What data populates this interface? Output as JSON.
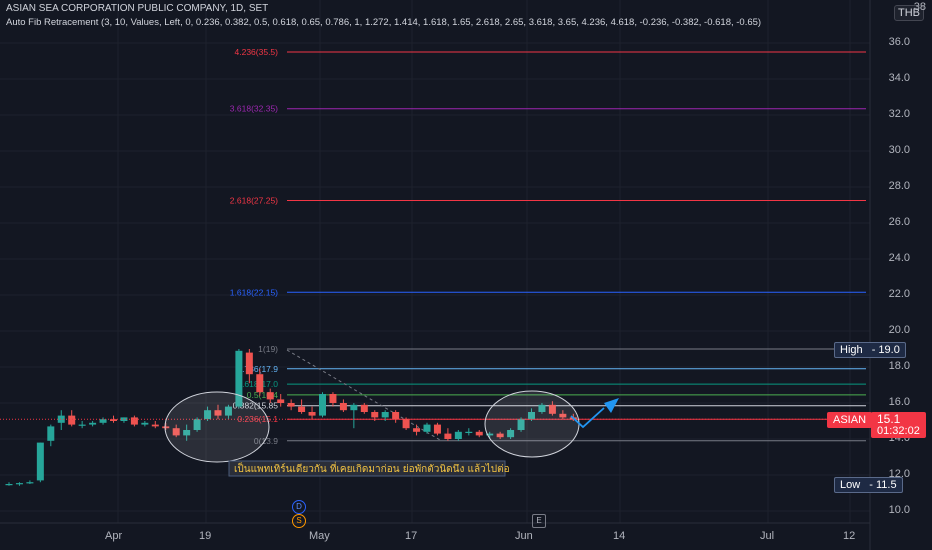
{
  "header": {
    "title": "ASIAN SEA CORPORATION PUBLIC COMPANY, 1D, SET",
    "indicator": "Auto Fib Retracement (3, 10, Values, Left, 0, 0.236, 0.382, 0.5, 0.618, 0.65, 0.786, 1, 1.272, 1.414, 1.618, 1.65, 2.618, 2.65, 3.618, 3.65, 4.236, 4.618, -0.236, -0.382, -0.618, -0.65)",
    "currency": "THB"
  },
  "price_axis": {
    "ticks": [
      "36.0",
      "34.0",
      "32.0",
      "30.0",
      "28.0",
      "26.0",
      "24.0",
      "22.0",
      "20.0",
      "18.0",
      "16.0",
      "14.0",
      "12.0",
      "10.0"
    ],
    "top_partial": "38"
  },
  "time_axis": {
    "ticks": [
      "Apr",
      "19",
      "May",
      "17",
      "Jun",
      "14",
      "Jul",
      "12"
    ]
  },
  "fib_levels": [
    {
      "label": "4.236(35.5)",
      "price": 35.5,
      "color": "#f23645"
    },
    {
      "label": "3.618(32.35)",
      "price": 32.35,
      "color": "#9c27b0"
    },
    {
      "label": "2.618(27.25)",
      "price": 27.25,
      "color": "#f23645"
    },
    {
      "label": "1.618(22.15)",
      "price": 22.15,
      "color": "#2962ff"
    },
    {
      "label": "1(19)",
      "price": 19,
      "color": "#787b86"
    },
    {
      "label": "0.786(17.9",
      "price": 17.9,
      "color": "#64b5f6"
    },
    {
      "label": "0.618(17.0",
      "price": 17.05,
      "color": "#089981"
    },
    {
      "label": "0.5(16.4",
      "price": 16.45,
      "color": "#4caf50"
    },
    {
      "label": "0.382(15.85",
      "price": 15.85,
      "color": "#d1d4dc"
    },
    {
      "label": "0.236(15.1",
      "price": 15.1,
      "color": "#f23645"
    },
    {
      "label": "0(13.9",
      "price": 13.9,
      "color": "#787b86"
    }
  ],
  "badges": {
    "high_label": "High",
    "high_value": "19.0",
    "low_label": "Low",
    "low_value": "11.5",
    "symbol": "ASIAN",
    "last_price": "15.1",
    "countdown": "01:32:02"
  },
  "annotation": {
    "text": "เป็นแพทเทิร์นเดียวกัน ที่เคยเกิดมาก่อน ย่อพักตัวนิดนึง แล้วไปต่อ"
  },
  "events": {
    "dividend": "D",
    "split": "S",
    "earnings": "E"
  },
  "colors": {
    "background": "#131722",
    "up": "#26a69a",
    "down": "#ef5350",
    "accent": "#2962ff"
  },
  "chart_data": {
    "type": "candlestick",
    "title": "ASIAN SEA CORPORATION PUBLIC COMPANY, 1D, SET",
    "ylim": [
      9.5,
      38
    ],
    "candles": [
      [
        11.5,
        11.6,
        11.4,
        11.5
      ],
      [
        11.5,
        11.6,
        11.4,
        11.55
      ],
      [
        11.6,
        11.7,
        11.5,
        11.6
      ],
      [
        11.7,
        13.8,
        11.6,
        13.8
      ],
      [
        13.9,
        14.8,
        13.6,
        14.7
      ],
      [
        14.9,
        15.6,
        14.5,
        15.3
      ],
      [
        15.3,
        15.6,
        14.7,
        14.8
      ],
      [
        14.8,
        15.0,
        14.6,
        14.8
      ],
      [
        14.8,
        15.0,
        14.7,
        14.9
      ],
      [
        14.9,
        15.2,
        14.8,
        15.1
      ],
      [
        15.1,
        15.3,
        14.9,
        15.0
      ],
      [
        15.0,
        15.2,
        14.9,
        15.2
      ],
      [
        15.2,
        15.3,
        14.7,
        14.8
      ],
      [
        14.8,
        15.0,
        14.7,
        14.9
      ],
      [
        14.8,
        15.0,
        14.6,
        14.7
      ],
      [
        14.7,
        14.9,
        14.5,
        14.6
      ],
      [
        14.6,
        14.8,
        14.1,
        14.2
      ],
      [
        14.2,
        14.8,
        13.9,
        14.5
      ],
      [
        14.5,
        15.2,
        14.4,
        15.1
      ],
      [
        15.1,
        15.8,
        15.0,
        15.6
      ],
      [
        15.6,
        15.9,
        15.1,
        15.3
      ],
      [
        15.3,
        15.9,
        15.1,
        15.8
      ],
      [
        15.8,
        19.0,
        15.7,
        18.9
      ],
      [
        18.8,
        19.0,
        17.1,
        17.6
      ],
      [
        17.6,
        17.9,
        16.4,
        16.6
      ],
      [
        16.6,
        16.8,
        16.0,
        16.2
      ],
      [
        16.2,
        16.5,
        15.8,
        16.0
      ],
      [
        16.0,
        16.2,
        15.6,
        15.8
      ],
      [
        15.8,
        16.2,
        15.4,
        15.5
      ],
      [
        15.5,
        15.8,
        15.1,
        15.3
      ],
      [
        15.3,
        16.6,
        15.2,
        16.5
      ],
      [
        16.5,
        16.6,
        15.8,
        16.0
      ],
      [
        16.0,
        16.2,
        15.5,
        15.6
      ],
      [
        15.6,
        16.0,
        14.6,
        15.9
      ],
      [
        15.9,
        16.0,
        15.4,
        15.5
      ],
      [
        15.5,
        15.6,
        15.0,
        15.2
      ],
      [
        15.2,
        15.6,
        15.0,
        15.5
      ],
      [
        15.5,
        15.6,
        14.9,
        15.1
      ],
      [
        15.1,
        15.2,
        14.5,
        14.6
      ],
      [
        14.6,
        14.8,
        14.2,
        14.4
      ],
      [
        14.4,
        14.9,
        14.3,
        14.8
      ],
      [
        14.8,
        14.9,
        14.2,
        14.3
      ],
      [
        14.3,
        14.6,
        13.9,
        14.0
      ],
      [
        14.0,
        14.5,
        13.9,
        14.4
      ],
      [
        14.4,
        14.6,
        14.2,
        14.4
      ],
      [
        14.4,
        14.5,
        14.1,
        14.2
      ],
      [
        14.2,
        14.4,
        14.0,
        14.3
      ],
      [
        14.3,
        14.4,
        14.0,
        14.1
      ],
      [
        14.1,
        14.6,
        14.0,
        14.5
      ],
      [
        14.5,
        15.2,
        14.4,
        15.1
      ],
      [
        15.1,
        15.7,
        15.0,
        15.5
      ],
      [
        15.5,
        16.0,
        15.4,
        15.9
      ],
      [
        15.9,
        16.1,
        15.3,
        15.4
      ],
      [
        15.4,
        15.6,
        15.1,
        15.2
      ],
      [
        15.2,
        15.4,
        15.0,
        15.1
      ]
    ],
    "notes": "OHLC daily candles estimated from the chart"
  }
}
